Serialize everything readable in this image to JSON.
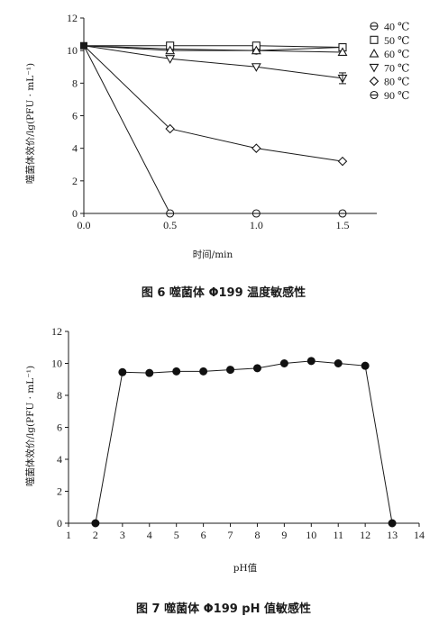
{
  "figures": [
    {
      "caption": "图 6   噬菌体 Φ199 温度敏感性",
      "xlabel": "时间/min",
      "ylabel": "噬菌体效价/lg(PFU · mL⁻¹)"
    },
    {
      "caption": "图 7   噬菌体 Φ199 pH 值敏感性",
      "xlabel": "pH值",
      "ylabel": "噬菌体效价/lg(PFU · mL⁻¹)"
    }
  ],
  "chart_data": [
    {
      "type": "line",
      "x": [
        0,
        0.5,
        1.0,
        1.5
      ],
      "x_ticks": [
        "0.0",
        "0.5",
        "1.0",
        "1.5"
      ],
      "xlim": [
        0,
        1.65
      ],
      "ylim": [
        0,
        12
      ],
      "y_ticks": [
        "0",
        "2",
        "4",
        "6",
        "8",
        "10",
        "12"
      ],
      "xlabel": "时间/min",
      "ylabel": "噬菌体效价/lg(PFU · mL⁻¹)",
      "legend_position": "top-right",
      "series": [
        {
          "name": "40 ℃",
          "marker": "circle-hline",
          "values": [
            10.3,
            10.1,
            10.0,
            10.2
          ]
        },
        {
          "name": "50 ℃",
          "marker": "square",
          "values": [
            10.3,
            10.3,
            10.3,
            10.2
          ]
        },
        {
          "name": "60 ℃",
          "marker": "triangle-up",
          "values": [
            10.3,
            10.0,
            10.0,
            9.9
          ]
        },
        {
          "name": "70 ℃",
          "marker": "triangle-down",
          "values": [
            10.3,
            9.5,
            9.0,
            8.3
          ]
        },
        {
          "name": "80 ℃",
          "marker": "diamond",
          "values": [
            10.3,
            5.2,
            4.0,
            3.2
          ]
        },
        {
          "name": "90 ℃",
          "marker": "circle-hline",
          "values": [
            10.3,
            0,
            0,
            0
          ]
        }
      ]
    },
    {
      "type": "line",
      "x": [
        2,
        3,
        4,
        5,
        6,
        7,
        8,
        9,
        10,
        11,
        12,
        13
      ],
      "values": [
        0,
        9.45,
        9.4,
        9.5,
        9.5,
        9.6,
        9.7,
        10.0,
        10.15,
        10.0,
        9.85,
        0
      ],
      "xlim": [
        1,
        14
      ],
      "x_ticks": [
        "1",
        "2",
        "3",
        "4",
        "5",
        "6",
        "7",
        "8",
        "9",
        "10",
        "11",
        "12",
        "13",
        "14"
      ],
      "ylim": [
        0,
        12
      ],
      "y_ticks": [
        "0",
        "2",
        "4",
        "6",
        "8",
        "10",
        "12"
      ],
      "xlabel": "pH值",
      "ylabel": "噬菌体效价/lg(PFU · mL⁻¹)",
      "marker": "filled-circle"
    }
  ]
}
